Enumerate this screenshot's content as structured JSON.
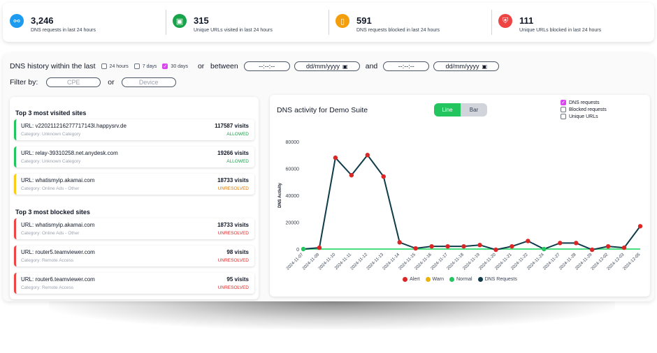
{
  "stats": [
    {
      "value": "3,246",
      "label": "DNS requests in last 24 hours",
      "color": "#2563eb",
      "icon": "network-icon"
    },
    {
      "value": "315",
      "label": "Unique URLs visited in last 24 hours",
      "color": "#16a34a",
      "icon": "monitor-icon"
    },
    {
      "value": "591",
      "label": "DNS requests blocked in last 24 hours",
      "color": "#f59e0b",
      "icon": "phone-icon"
    },
    {
      "value": "111",
      "label": "Unique URLs blocked in last 24 hours",
      "color": "#ef4444",
      "icon": "shield-icon"
    }
  ],
  "filters": {
    "history_label": "DNS history within the last",
    "range_24h": "24 hours",
    "range_7d": "7 days",
    "range_30d": "30 days",
    "or_between": "or   between",
    "time_placeholder": "--:--:--",
    "date_placeholder": "dd/mm/yyyy",
    "and": "and",
    "filter_by": "Filter by:",
    "or": "or",
    "cpe_placeholder": "CPE",
    "device_placeholder": "Device"
  },
  "visited": {
    "title": "Top 3 most visited sites",
    "items": [
      {
        "url": "URL: v220211216277717143l.happysrv.de",
        "category": "Category: Unknown Category",
        "visits": "117587 visits",
        "status": "ALLOWED"
      },
      {
        "url": "URL: relay-39310258.net.anydesk.com",
        "category": "Category: Unknown Category",
        "visits": "19266 visits",
        "status": "ALLOWED"
      },
      {
        "url": "URL: whatismyip.akamai.com",
        "category": "Category: Online Ads - Other",
        "visits": "18733 visits",
        "status": "UNRESOLVED"
      }
    ]
  },
  "blocked": {
    "title": "Top 3 most blocked sites",
    "items": [
      {
        "url": "URL: whatismyip.akamai.com",
        "category": "Category: Online Ads - Other",
        "visits": "18733 visits",
        "status": "UNRESOLVED"
      },
      {
        "url": "URL: router5.teamviewer.com",
        "category": "Category: Remote Access",
        "visits": "98 visits",
        "status": "UNRESOLVED"
      },
      {
        "url": "URL: router6.teamviewer.com",
        "category": "Category: Remote Access",
        "visits": "95 visits",
        "status": "UNRESOLVED"
      }
    ]
  },
  "chart": {
    "title": "DNS activity for Demo Suite",
    "toggle_line": "Line",
    "toggle_bar": "Bar",
    "check_dns": "DNS requests",
    "check_blocked": "Blocked requests",
    "check_unique": "Unique URLs",
    "legend": [
      "Alert",
      "Warn",
      "Normal",
      "DNS Requests"
    ]
  },
  "chart_data": {
    "type": "line",
    "ylabel": "DNS Activity",
    "ylim": [
      0,
      80000
    ],
    "yticks": [
      0,
      20000,
      40000,
      60000,
      80000
    ],
    "categories": [
      "2024-11-07",
      "2024-11-09",
      "2024-11-10",
      "2024-11-11",
      "2024-11-12",
      "2024-11-13",
      "2024-11-14",
      "2024-11-15",
      "2024-11-16",
      "2024-11-17",
      "2024-11-18",
      "2024-11-19",
      "2024-11-20",
      "2024-11-21",
      "2024-11-22",
      "2024-11-24",
      "2024-11-27",
      "2024-11-28",
      "2024-11-29",
      "2024-12-02",
      "2024-12-03",
      "2024-12-05"
    ],
    "series": [
      {
        "name": "DNS Requests",
        "color": "#0f3b4a",
        "values": [
          0,
          1000,
          68000,
          55000,
          70000,
          54000,
          5000,
          500,
          2000,
          2000,
          2000,
          3000,
          -500,
          2000,
          6000,
          0,
          4500,
          4500,
          -500,
          2000,
          1000,
          17000
        ],
        "point_status": [
          "normal",
          "alert",
          "alert",
          "alert",
          "alert",
          "alert",
          "alert",
          "alert",
          "alert",
          "alert",
          "alert",
          "alert",
          "alert",
          "alert",
          "alert",
          "normal",
          "alert",
          "alert",
          "alert",
          "alert",
          "alert",
          "alert"
        ]
      },
      {
        "name": "Normal",
        "color": "#4ade80",
        "values": [
          0,
          0,
          0,
          0,
          0,
          0,
          0,
          0,
          0,
          0,
          0,
          0,
          0,
          0,
          0,
          0,
          0,
          0,
          0,
          0,
          0,
          0
        ]
      }
    ],
    "status_colors": {
      "alert": "#dc2626",
      "warn": "#eab308",
      "normal": "#22c55e"
    }
  }
}
